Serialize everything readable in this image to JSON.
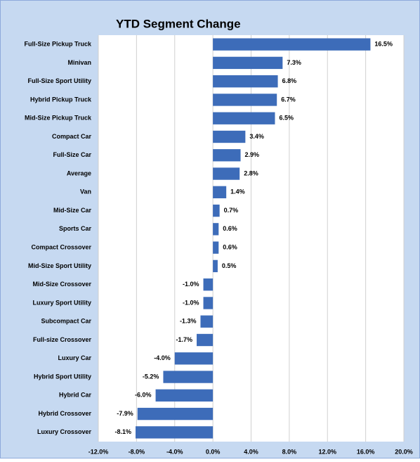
{
  "chart_data": {
    "type": "bar",
    "orientation": "horizontal",
    "title": "YTD Segment Change",
    "categories": [
      "Full-Size Pickup Truck",
      "Minivan",
      "Full-Size Sport Utility",
      "Hybrid Pickup Truck",
      "Mid-Size Pickup Truck",
      "Compact Car",
      "Full-Size Car",
      "Average",
      "Van",
      "Mid-Size Car",
      "Sports Car",
      "Compact Crossover",
      "Mid-Size Sport Utility",
      "Mid-Size Crossover",
      "Luxury Sport Utility",
      "Subcompact Car",
      "Full-size Crossover",
      "Luxury Car",
      "Hybrid Sport Utility",
      "Hybrid Car",
      "Hybrid Crossover",
      "Luxury Crossover"
    ],
    "values": [
      16.5,
      7.3,
      6.8,
      6.7,
      6.5,
      3.4,
      2.9,
      2.8,
      1.4,
      0.7,
      0.6,
      0.6,
      0.5,
      -1.0,
      -1.0,
      -1.3,
      -1.7,
      -4.0,
      -5.2,
      -6.0,
      -7.9,
      -8.1
    ],
    "value_labels": [
      "16.5%",
      "7.3%",
      "6.8%",
      "6.7%",
      "6.5%",
      "3.4%",
      "2.9%",
      "2.8%",
      "1.4%",
      "0.7%",
      "0.6%",
      "0.6%",
      "0.5%",
      "-1.0%",
      "-1.0%",
      "-1.3%",
      "-1.7%",
      "-4.0%",
      "-5.2%",
      "-6.0%",
      "-7.9%",
      "-8.1%"
    ],
    "color": "#3d6cb9",
    "xlim": [
      -12,
      20
    ],
    "xticks": [
      {
        "value": -12,
        "label": "-12.0%"
      },
      {
        "value": -8,
        "label": "-8.0%"
      },
      {
        "value": -4,
        "label": "-4.0%"
      },
      {
        "value": 0,
        "label": "0.0%"
      },
      {
        "value": 4,
        "label": "4.0%"
      },
      {
        "value": 8,
        "label": "8.0%"
      },
      {
        "value": 12,
        "label": "12.0%"
      },
      {
        "value": 16,
        "label": "16.0%"
      },
      {
        "value": 20,
        "label": "20.0%"
      }
    ],
    "grid": true
  }
}
